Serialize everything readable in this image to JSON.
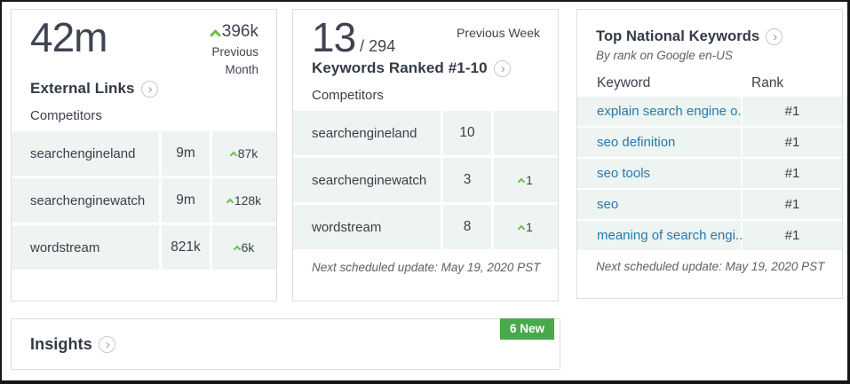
{
  "colors": {
    "accent_green": "#68c04b",
    "badge_green": "#4aa84c",
    "link_blue": "#2879ae",
    "row_bg": "#edf4f1",
    "text_dark": "#3e4450",
    "muted_gray": "#5a6169",
    "card_border": "#dadde0"
  },
  "external_links_card": {
    "big_value": "42m",
    "change_value": "396k",
    "change_period": "Previous Month",
    "title": "External Links",
    "competitors_label": "Competitors",
    "rows": [
      {
        "name": "searchengineland",
        "value": "9m",
        "change": "87k"
      },
      {
        "name": "searchenginewatch",
        "value": "9m",
        "change": "128k"
      },
      {
        "name": "wordstream",
        "value": "821k",
        "change": "6k"
      }
    ]
  },
  "keywords_card": {
    "big_value": "13",
    "big_total": "/ 294",
    "period_label": "Previous Week",
    "title": "Keywords Ranked #1-10",
    "competitors_label": "Competitors",
    "rows": [
      {
        "name": "searchengineland",
        "value": "10",
        "change": ""
      },
      {
        "name": "searchenginewatch",
        "value": "3",
        "change": "1"
      },
      {
        "name": "wordstream",
        "value": "8",
        "change": "1"
      }
    ],
    "footer": "Next scheduled update: May 19, 2020 PST"
  },
  "top_keywords_card": {
    "title": "Top National Keywords",
    "subtitle": "By rank on Google en-US",
    "col_keyword": "Keyword",
    "col_rank": "Rank",
    "rows": [
      {
        "keyword": "explain search engine o...",
        "rank": "#1"
      },
      {
        "keyword": "seo definition",
        "rank": "#1"
      },
      {
        "keyword": "seo tools",
        "rank": "#1"
      },
      {
        "keyword": "seo",
        "rank": "#1"
      },
      {
        "keyword": "meaning of search engi...",
        "rank": "#1"
      }
    ],
    "footer": "Next scheduled update: May 19, 2020 PST"
  },
  "insights_card": {
    "title": "Insights",
    "badge": "6 New"
  }
}
